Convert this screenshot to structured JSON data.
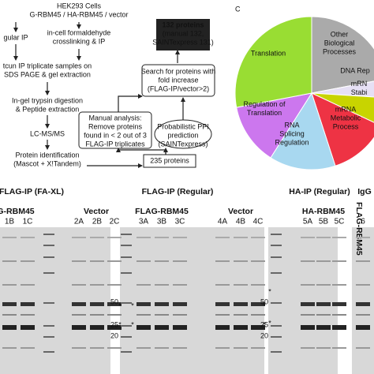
{
  "flowchart": {
    "nodes": [
      {
        "id": "cells",
        "lines": [
          "HEK293 Cells",
          "G-RBM45 / HA-RBM45 / vector"
        ]
      },
      {
        "id": "ip-regular",
        "lines": [
          "gular IP"
        ]
      },
      {
        "id": "ip-crosslink",
        "lines": [
          "in-cell formaldehyde",
          "crosslinking & IP"
        ]
      },
      {
        "id": "sds",
        "lines": [
          "tcun IP triplicate samples on",
          "SDS PAGE & gel extraction"
        ]
      },
      {
        "id": "digest",
        "lines": [
          "In-gel trypsin digestion",
          "& Peptide extraction"
        ]
      },
      {
        "id": "lcms",
        "lines": [
          "LC-MS/MS"
        ]
      },
      {
        "id": "ident",
        "lines": [
          "Protein identification",
          "(Mascot + X!Tandem)"
        ]
      },
      {
        "id": "total",
        "lines": [
          "235 proteins"
        ]
      },
      {
        "id": "manual",
        "lines": [
          "Manual analysis:",
          "Remove proteins",
          "found in < 2 out of 3",
          "FLAG-IP triplicates"
        ]
      },
      {
        "id": "saint",
        "lines": [
          "Probabilistic PPI",
          "prediction",
          "(SAINTexpress)"
        ]
      },
      {
        "id": "search",
        "lines": [
          "Search for proteins with",
          "fold increase",
          "(FLAG-IP/vector>2)"
        ]
      },
      {
        "id": "result",
        "lines": [
          "132 proteins",
          "(manual 132,",
          "SAINTexpress 131)"
        ]
      }
    ]
  },
  "pie": {
    "panel_label": "C",
    "slices": [
      {
        "lines": [
          "Other",
          "Biological",
          "Processes"
        ],
        "value": 22,
        "color": "#aaaaaa"
      },
      {
        "lines": [
          "DNA Rep"
        ],
        "value": 4,
        "color": "#e6e0f5"
      },
      {
        "lines": [
          "mRN",
          "Stabi"
        ],
        "value": 6,
        "color": "#c8d400"
      },
      {
        "lines": [
          "mRNA",
          "Metabolic",
          "Process"
        ],
        "value": 13,
        "color": "#ee3344"
      },
      {
        "lines": [
          "RNA",
          "Splicing",
          "Regulation"
        ],
        "value": 14,
        "color": "#a8d8f0"
      },
      {
        "lines": [
          "Regulation of",
          "Translation"
        ],
        "value": 13,
        "color": "#cc77ee"
      },
      {
        "lines": [
          "Translation"
        ],
        "value": 28,
        "color": "#99dd33"
      }
    ]
  },
  "gels": {
    "headers": [
      "FLAG-IP (FA-XL)",
      "FLAG-IP (Regular)",
      "HA-IP (Regular)",
      "IgG"
    ],
    "groups": [
      {
        "name": "G-RBM45",
        "lanes": [
          "1B",
          "1C"
        ]
      },
      {
        "name": "Vector",
        "lanes": [
          "2A",
          "2B",
          "2C"
        ]
      },
      {
        "name": "FLAG-RBM45",
        "lanes": [
          "3A",
          "3B",
          "3C"
        ]
      },
      {
        "name": "Vector",
        "lanes": [
          "4A",
          "4B",
          "4C"
        ]
      },
      {
        "name": "HA-RBM45",
        "lanes": [
          "5A",
          "5B",
          "5C"
        ]
      },
      {
        "name": "FLAG-RBM45",
        "lanes": [
          "6"
        ]
      }
    ],
    "markers": [
      "50",
      "25",
      "20"
    ]
  }
}
